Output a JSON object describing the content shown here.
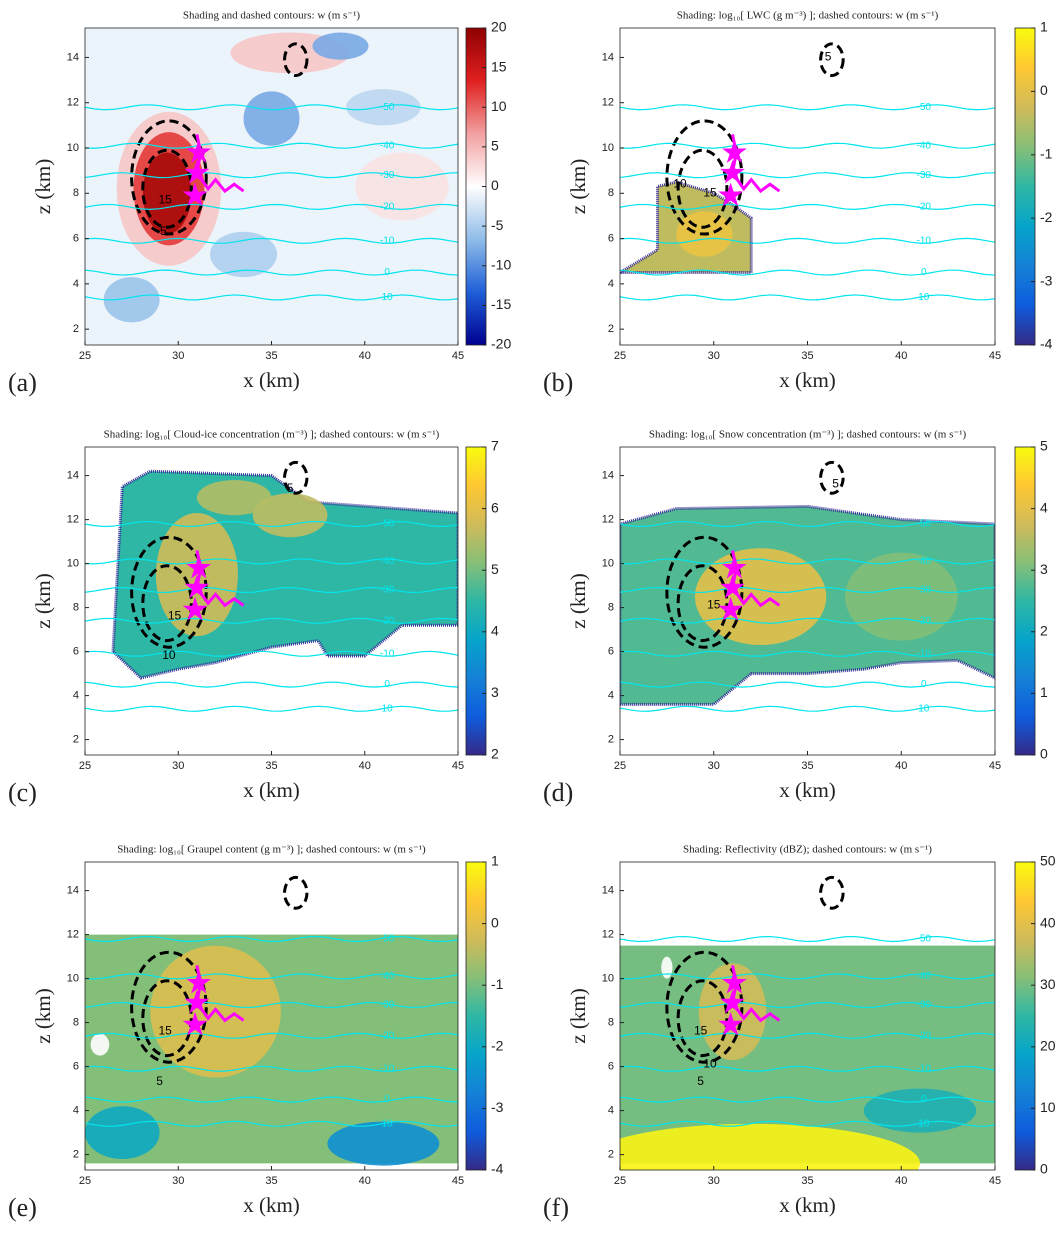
{
  "chart_data": [
    {
      "type": "contour",
      "panel_label": "(a)",
      "title": "Shading and dashed contours: w (m s⁻¹)",
      "xlabel": "x (km)",
      "ylabel": "z (km)",
      "xlim": [
        25,
        45
      ],
      "xticks": [
        25,
        30,
        35,
        40,
        45
      ],
      "ylim": [
        1.3,
        15.3
      ],
      "yticks": [
        2,
        4,
        6,
        8,
        10,
        12,
        14
      ],
      "colormap": "bwr",
      "clim": [
        -20,
        20
      ],
      "cticks": [
        -20,
        -15,
        -10,
        -5,
        0,
        5,
        10,
        15,
        20
      ],
      "isotherm_color": "#00e5ee",
      "isotherms": [
        {
          "level": -50,
          "z": 11.8
        },
        {
          "level": -40,
          "z": 10.1
        },
        {
          "level": -30,
          "z": 8.8
        },
        {
          "level": -20,
          "z": 7.4
        },
        {
          "level": -10,
          "z": 5.9
        },
        {
          "level": 0,
          "z": 4.5
        },
        {
          "level": 10,
          "z": 3.4
        }
      ],
      "contour_labels": [
        {
          "value": 15,
          "x": 29.3,
          "z": 7.7
        },
        {
          "value": 5,
          "x": 29.2,
          "z": 6.3
        }
      ],
      "track": {
        "color": "#ff00ff",
        "x": [
          31.0,
          31.2,
          31.0,
          31.6,
          32.0,
          32.5,
          33.0,
          33.5
        ],
        "z": [
          10.6,
          9.8,
          8.9,
          8.2,
          8.6,
          8.1,
          8.4,
          8.1
        ]
      },
      "stars": {
        "x": [
          31.1,
          31.0,
          30.9
        ],
        "z": [
          9.8,
          8.9,
          7.9
        ]
      }
    },
    {
      "type": "contour",
      "panel_label": "(b)",
      "title": "Shading: log₁₀[ LWC (g m⁻³) ]; dashed contours: w (m s⁻¹)",
      "xlabel": "x (km)",
      "ylabel": "z (km)",
      "xlim": [
        25,
        45
      ],
      "xticks": [
        25,
        30,
        35,
        40,
        45
      ],
      "ylim": [
        1.3,
        15.3
      ],
      "yticks": [
        2,
        4,
        6,
        8,
        10,
        12,
        14
      ],
      "colormap": "parula",
      "clim": [
        -4,
        1
      ],
      "cticks": [
        -4,
        -3,
        -2,
        -1,
        0,
        1
      ],
      "isotherm_color": "#00e5ee",
      "isotherms": [
        {
          "level": -50,
          "z": 11.8
        },
        {
          "level": -40,
          "z": 10.1
        },
        {
          "level": -30,
          "z": 8.8
        },
        {
          "level": -20,
          "z": 7.4
        },
        {
          "level": -10,
          "z": 5.9
        },
        {
          "level": 0,
          "z": 4.5
        },
        {
          "level": 10,
          "z": 3.4
        }
      ],
      "contour_labels": [
        {
          "value": 15,
          "x": 29.8,
          "z": 8.0
        },
        {
          "value": 5,
          "x": 36.1,
          "z": 14.0
        },
        {
          "value": 10,
          "x": 28.2,
          "z": 8.4
        }
      ],
      "track": {
        "color": "#ff00ff",
        "x": [
          31.0,
          31.2,
          31.0,
          31.6,
          32.0,
          32.5,
          33.0,
          33.5
        ],
        "z": [
          10.6,
          9.8,
          8.9,
          8.2,
          8.6,
          8.1,
          8.4,
          8.1
        ]
      },
      "stars": {
        "x": [
          31.1,
          31.0,
          30.9
        ],
        "z": [
          9.8,
          8.9,
          7.9
        ]
      }
    },
    {
      "type": "contour",
      "panel_label": "(c)",
      "title": "Shading: log₁₀[ Cloud-ice concentration (m⁻³) ]; dashed contours: w (m s⁻¹)",
      "xlabel": "x (km)",
      "ylabel": "z (km)",
      "xlim": [
        25,
        45
      ],
      "xticks": [
        25,
        30,
        35,
        40,
        45
      ],
      "ylim": [
        1.3,
        15.3
      ],
      "yticks": [
        2,
        4,
        6,
        8,
        10,
        12,
        14
      ],
      "colormap": "parula",
      "clim": [
        2,
        7
      ],
      "cticks": [
        2,
        3,
        4,
        5,
        6,
        7
      ],
      "isotherm_color": "#00e5ee",
      "isotherms": [
        {
          "level": -50,
          "z": 11.8
        },
        {
          "level": -40,
          "z": 10.1
        },
        {
          "level": -30,
          "z": 8.8
        },
        {
          "level": -20,
          "z": 7.4
        },
        {
          "level": -10,
          "z": 5.9
        },
        {
          "level": 0,
          "z": 4.5
        },
        {
          "level": 10,
          "z": 3.4
        }
      ],
      "contour_labels": [
        {
          "value": 15,
          "x": 29.8,
          "z": 7.6
        },
        {
          "value": 10,
          "x": 29.5,
          "z": 5.8
        },
        {
          "value": 5,
          "x": 36.0,
          "z": 13.4
        }
      ],
      "track": {
        "color": "#ff00ff",
        "x": [
          31.0,
          31.2,
          31.0,
          31.6,
          32.0,
          32.5,
          33.0,
          33.5
        ],
        "z": [
          10.6,
          9.8,
          8.9,
          8.2,
          8.6,
          8.1,
          8.4,
          8.1
        ]
      },
      "stars": {
        "x": [
          31.1,
          31.0,
          30.9
        ],
        "z": [
          9.8,
          8.9,
          7.9
        ]
      }
    },
    {
      "type": "contour",
      "panel_label": "(d)",
      "title": "Shading: log₁₀[ Snow concentration (m⁻³) ]; dashed contours: w (m s⁻¹)",
      "xlabel": "x (km)",
      "ylabel": "z (km)",
      "xlim": [
        25,
        45
      ],
      "xticks": [
        25,
        30,
        35,
        40,
        45
      ],
      "ylim": [
        1.3,
        15.3
      ],
      "yticks": [
        2,
        4,
        6,
        8,
        10,
        12,
        14
      ],
      "colormap": "parula",
      "clim": [
        0,
        5
      ],
      "cticks": [
        0,
        1,
        2,
        3,
        4,
        5
      ],
      "isotherm_color": "#00e5ee",
      "isotherms": [
        {
          "level": -50,
          "z": 11.8
        },
        {
          "level": -40,
          "z": 10.1
        },
        {
          "level": -30,
          "z": 8.8
        },
        {
          "level": -20,
          "z": 7.4
        },
        {
          "level": -10,
          "z": 5.9
        },
        {
          "level": 0,
          "z": 4.5
        },
        {
          "level": 10,
          "z": 3.4
        }
      ],
      "contour_labels": [
        {
          "value": 15,
          "x": 30.0,
          "z": 8.1
        },
        {
          "value": 5,
          "x": 36.5,
          "z": 13.6
        }
      ],
      "track": {
        "color": "#ff00ff",
        "x": [
          31.0,
          31.2,
          31.0,
          31.6,
          32.0,
          32.5,
          33.0,
          33.5
        ],
        "z": [
          10.6,
          9.8,
          8.9,
          8.2,
          8.6,
          8.1,
          8.4,
          8.1
        ]
      },
      "stars": {
        "x": [
          31.1,
          31.0,
          30.9
        ],
        "z": [
          9.8,
          8.9,
          7.9
        ]
      }
    },
    {
      "type": "contour",
      "panel_label": "(e)",
      "title": "Shading: log₁₀[ Graupel content (g m⁻³) ]; dashed contours: w (m s⁻¹)",
      "xlabel": "x (km)",
      "ylabel": "z (km)",
      "xlim": [
        25,
        45
      ],
      "xticks": [
        25,
        30,
        35,
        40,
        45
      ],
      "ylim": [
        1.3,
        15.3
      ],
      "yticks": [
        2,
        4,
        6,
        8,
        10,
        12,
        14
      ],
      "colormap": "parula",
      "clim": [
        -4,
        1
      ],
      "cticks": [
        -4,
        -3,
        -2,
        -1,
        0,
        1
      ],
      "isotherm_color": "#00e5ee",
      "isotherms": [
        {
          "level": -50,
          "z": 11.8
        },
        {
          "level": -40,
          "z": 10.1
        },
        {
          "level": -30,
          "z": 8.8
        },
        {
          "level": -20,
          "z": 7.4
        },
        {
          "level": -10,
          "z": 5.9
        },
        {
          "level": 0,
          "z": 4.5
        },
        {
          "level": 10,
          "z": 3.4
        }
      ],
      "contour_labels": [
        {
          "value": 15,
          "x": 29.3,
          "z": 7.6
        },
        {
          "value": 5,
          "x": 29.0,
          "z": 5.3
        }
      ],
      "track": {
        "color": "#ff00ff",
        "x": [
          31.0,
          31.2,
          31.0,
          31.6,
          32.0,
          32.5,
          33.0,
          33.5
        ],
        "z": [
          10.6,
          9.8,
          8.9,
          8.2,
          8.6,
          8.1,
          8.4,
          8.1
        ]
      },
      "stars": {
        "x": [
          31.1,
          31.0,
          30.9
        ],
        "z": [
          9.8,
          8.9,
          7.9
        ]
      }
    },
    {
      "type": "contour",
      "panel_label": "(f)",
      "title": "Shading: Reflectivity (dBZ); dashed contours: w (m s⁻¹)",
      "xlabel": "x (km)",
      "ylabel": "z (km)",
      "xlim": [
        25,
        45
      ],
      "xticks": [
        25,
        30,
        35,
        40,
        45
      ],
      "ylim": [
        1.3,
        15.3
      ],
      "yticks": [
        2,
        4,
        6,
        8,
        10,
        12,
        14
      ],
      "colormap": "parula",
      "clim": [
        0,
        50
      ],
      "cticks": [
        0,
        10,
        20,
        30,
        40,
        50
      ],
      "isotherm_color": "#00e5ee",
      "isotherms": [
        {
          "level": -50,
          "z": 11.8
        },
        {
          "level": -40,
          "z": 10.1
        },
        {
          "level": -30,
          "z": 8.8
        },
        {
          "level": -20,
          "z": 7.4
        },
        {
          "level": -10,
          "z": 5.9
        },
        {
          "level": 0,
          "z": 4.5
        },
        {
          "level": 10,
          "z": 3.4
        }
      ],
      "contour_labels": [
        {
          "value": 15,
          "x": 29.3,
          "z": 7.6
        },
        {
          "value": 10,
          "x": 29.8,
          "z": 6.1
        },
        {
          "value": 5,
          "x": 29.3,
          "z": 5.3
        }
      ],
      "track": {
        "color": "#ff00ff",
        "x": [
          31.0,
          31.2,
          31.0,
          31.6,
          32.0,
          32.5,
          33.0,
          33.5
        ],
        "z": [
          10.6,
          9.8,
          8.9,
          8.2,
          8.6,
          8.1,
          8.4,
          8.1
        ]
      },
      "stars": {
        "x": [
          31.1,
          31.0,
          30.9
        ],
        "z": [
          9.8,
          8.9,
          7.9
        ]
      }
    }
  ]
}
